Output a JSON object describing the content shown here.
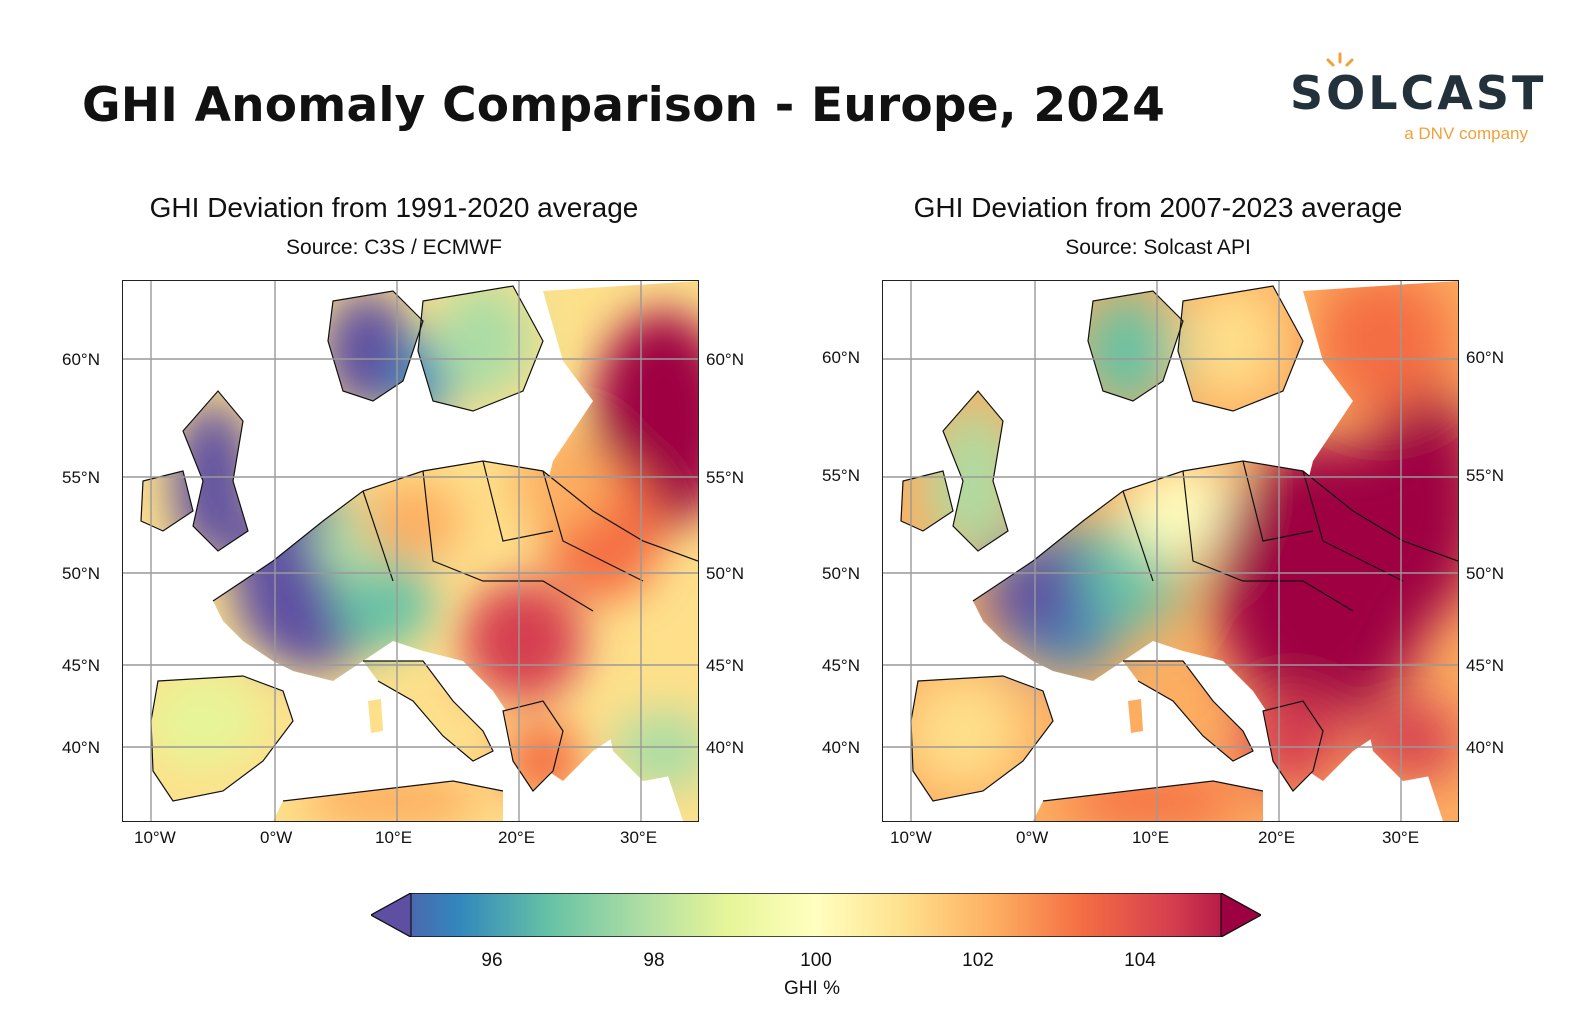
{
  "header": {
    "title": "GHI Anomaly Comparison - Europe, 2024",
    "logo_word": "SOLCAST",
    "logo_sub": "a DNV company",
    "accent": "#f2a03a"
  },
  "panels": [
    {
      "title": "GHI Deviation from 1991-2020 average",
      "subtitle": "Source: C3S / ECMWF",
      "lat_ticks": [
        "60°N",
        "55°N",
        "50°N",
        "45°N",
        "40°N"
      ],
      "lon_ticks": [
        "10°W",
        "0°W",
        "10°E",
        "20°E",
        "30°E"
      ]
    },
    {
      "title": "GHI Deviation from 2007-2023 average",
      "subtitle": "Source: Solcast API",
      "lat_ticks": [
        "60°N",
        "55°N",
        "50°N",
        "45°N",
        "40°N"
      ],
      "lon_ticks": [
        "10°W",
        "0°W",
        "10°E",
        "20°E",
        "30°E"
      ]
    }
  ],
  "colorbar": {
    "labels": [
      "96",
      "98",
      "100",
      "102",
      "104"
    ],
    "title": "GHI %",
    "colors": [
      "#5e4fa2",
      "#3288bd",
      "#66c2a5",
      "#abdda4",
      "#e6f598",
      "#ffffbf",
      "#fee08b",
      "#fdae61",
      "#f46d43",
      "#d53e4f",
      "#9e0142"
    ]
  }
}
